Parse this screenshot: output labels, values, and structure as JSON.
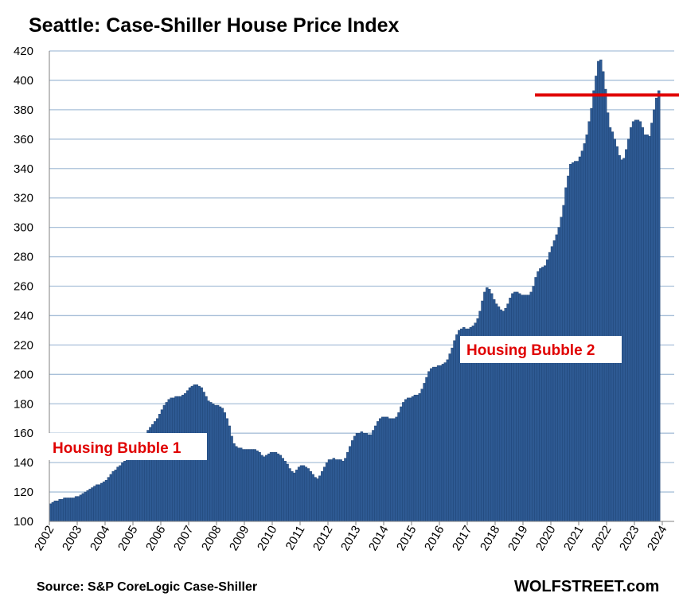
{
  "chart_data": {
    "type": "bar",
    "title": "Seattle: Case-Shiller House Price Index",
    "xlabel": "",
    "ylabel": "",
    "ylim": [
      100,
      420
    ],
    "yticks": [
      100,
      120,
      140,
      160,
      180,
      200,
      220,
      240,
      260,
      280,
      300,
      320,
      340,
      360,
      380,
      400,
      420
    ],
    "xticks": [
      "2002",
      "2003",
      "2004",
      "2005",
      "2006",
      "2007",
      "2008",
      "2009",
      "2010",
      "2011",
      "2012",
      "2013",
      "2014",
      "2015",
      "2016",
      "2017",
      "2018",
      "2019",
      "2020",
      "2021",
      "2022",
      "2023",
      "2024"
    ],
    "grid": true,
    "bar_color": "#2e5a93",
    "x_start": "2002-01",
    "frequency": "monthly",
    "values": [
      112,
      113,
      114,
      114,
      115,
      115,
      116,
      116,
      116,
      116,
      116,
      117,
      117,
      118,
      119,
      120,
      121,
      122,
      123,
      124,
      125,
      125,
      126,
      127,
      128,
      130,
      132,
      134,
      135,
      137,
      138,
      140,
      141,
      142,
      143,
      143,
      145,
      147,
      150,
      153,
      156,
      159,
      162,
      164,
      166,
      168,
      170,
      173,
      176,
      179,
      181,
      183,
      184,
      184,
      185,
      185,
      185,
      186,
      187,
      189,
      191,
      192,
      193,
      193,
      192,
      191,
      188,
      185,
      182,
      181,
      180,
      179,
      179,
      178,
      177,
      174,
      170,
      165,
      158,
      153,
      151,
      150,
      150,
      149,
      149,
      149,
      149,
      149,
      149,
      148,
      147,
      145,
      144,
      145,
      146,
      147,
      147,
      147,
      146,
      145,
      143,
      141,
      139,
      136,
      134,
      133,
      135,
      137,
      138,
      138,
      137,
      136,
      134,
      132,
      130,
      129,
      131,
      134,
      137,
      140,
      142,
      142,
      143,
      142,
      142,
      142,
      141,
      143,
      147,
      151,
      155,
      158,
      160,
      160,
      161,
      160,
      160,
      159,
      159,
      162,
      165,
      168,
      170,
      171,
      171,
      171,
      170,
      170,
      170,
      171,
      174,
      178,
      181,
      183,
      184,
      184,
      185,
      186,
      186,
      187,
      190,
      194,
      198,
      202,
      204,
      205,
      205,
      206,
      206,
      207,
      208,
      210,
      214,
      218,
      223,
      227,
      230,
      231,
      232,
      231,
      231,
      232,
      233,
      235,
      238,
      243,
      250,
      256,
      259,
      258,
      255,
      251,
      248,
      246,
      244,
      243,
      245,
      248,
      252,
      255,
      256,
      256,
      255,
      254,
      254,
      254,
      254,
      256,
      260,
      266,
      270,
      272,
      273,
      274,
      278,
      283,
      287,
      291,
      295,
      300,
      307,
      315,
      327,
      335,
      343,
      344,
      345,
      345,
      348,
      352,
      357,
      363,
      372,
      381,
      393,
      403,
      413,
      414,
      406,
      394,
      378,
      368,
      365,
      360,
      355,
      349,
      346,
      347,
      353,
      360,
      368,
      372,
      373,
      373,
      372,
      368,
      363,
      363,
      362,
      371,
      380,
      388,
      393
    ]
  },
  "annotations": {
    "bubble1": "Housing Bubble 1",
    "bubble2": "Housing Bubble 2",
    "ref_line_value": 390,
    "ref_line_color": "#e00000"
  },
  "footer": {
    "source": "Source: S&P CoreLogic Case-Shiller",
    "brand": "WOLFSTREET.com"
  }
}
